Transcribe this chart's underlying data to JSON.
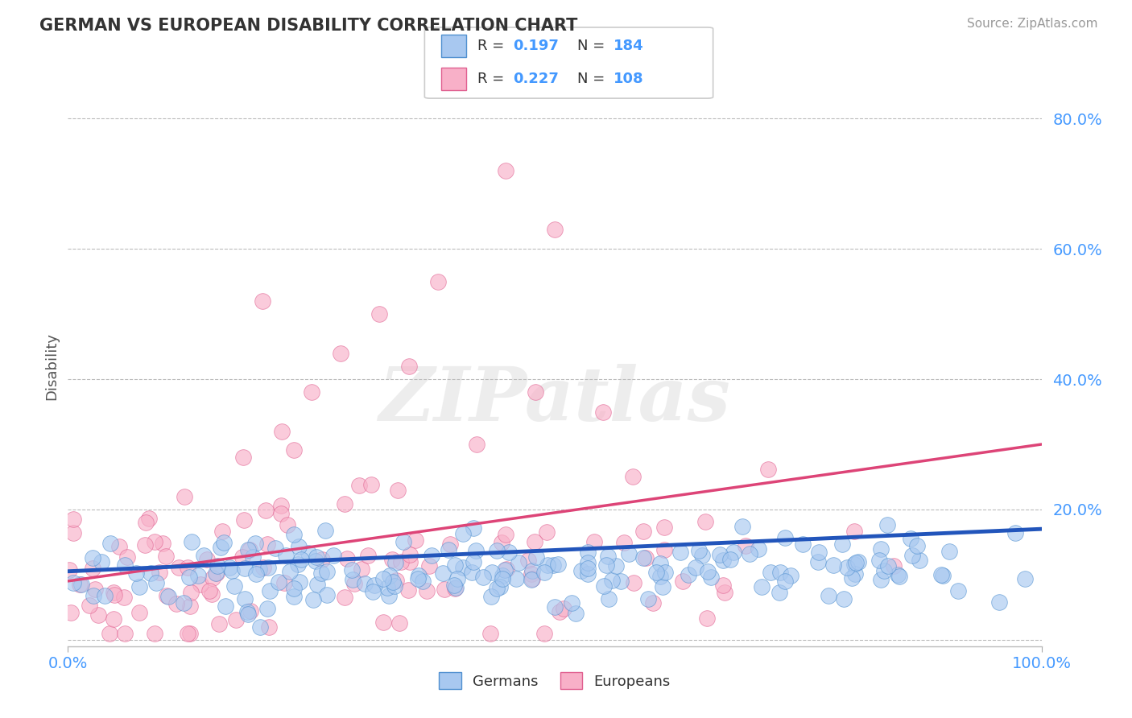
{
  "title": "GERMAN VS EUROPEAN DISABILITY CORRELATION CHART",
  "source": "Source: ZipAtlas.com",
  "ylabel": "Disability",
  "xlim": [
    0,
    1
  ],
  "ylim": [
    -0.01,
    0.85
  ],
  "ytick_positions": [
    0.0,
    0.2,
    0.4,
    0.6,
    0.8
  ],
  "ytick_labels": [
    "",
    "20.0%",
    "40.0%",
    "60.0%",
    "80.0%"
  ],
  "xtick_positions": [
    0.0,
    1.0
  ],
  "xtick_labels": [
    "0.0%",
    "100.0%"
  ],
  "german_R": 0.197,
  "german_N": 184,
  "european_R": 0.227,
  "european_N": 108,
  "german_fill": "#A8C8F0",
  "german_edge": "#5090D0",
  "european_fill": "#F8B0C8",
  "european_edge": "#E06090",
  "german_line_color": "#2255BB",
  "european_line_color": "#DD4477",
  "background_color": "#FFFFFF",
  "grid_color": "#BBBBBB",
  "title_color": "#333333",
  "axis_label_color": "#555555",
  "tick_color": "#4499FF",
  "watermark_color": "#DDDDDD",
  "seed": 7
}
